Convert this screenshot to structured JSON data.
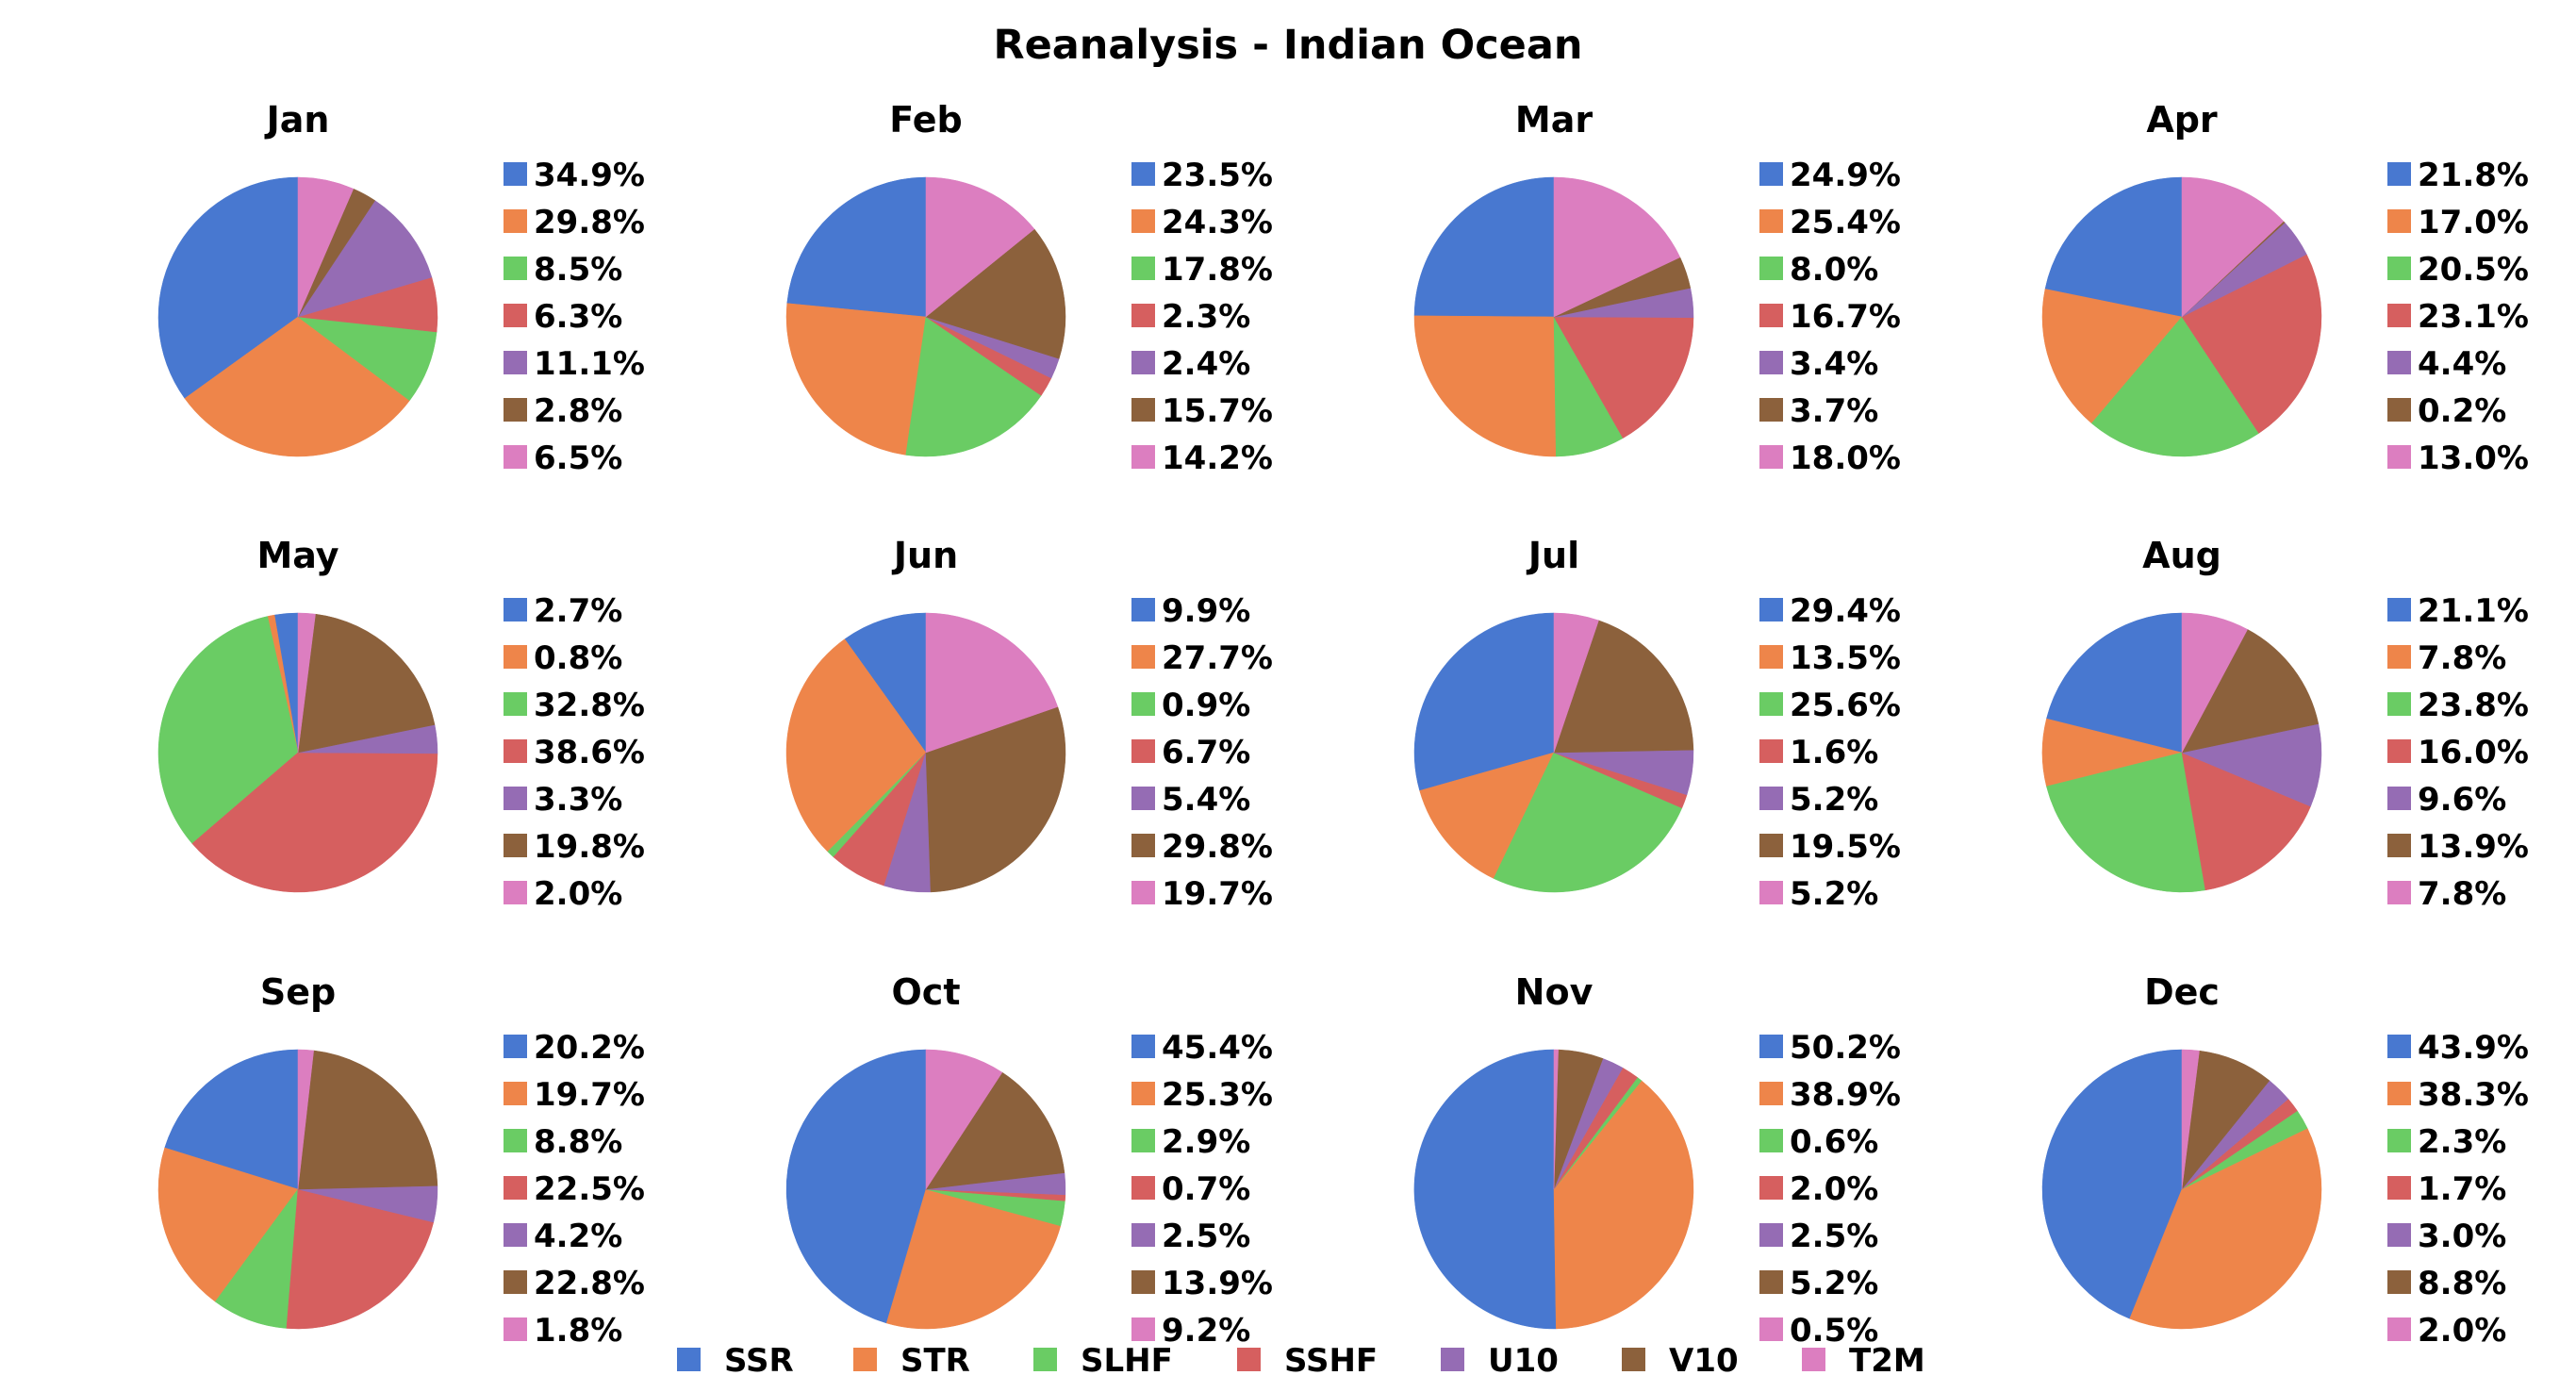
{
  "chart_data": {
    "type": "pie",
    "title": "Reanalysis - Indian Ocean",
    "legend_placement": "bottom-center",
    "series": [
      {
        "name": "SSR",
        "color": "#4878d0"
      },
      {
        "name": "STR",
        "color": "#ee854a"
      },
      {
        "name": "SLHF",
        "color": "#6acc64"
      },
      {
        "name": "SSHF",
        "color": "#d65f5f"
      },
      {
        "name": "U10",
        "color": "#956cb4"
      },
      {
        "name": "V10",
        "color": "#8c613c"
      },
      {
        "name": "T2M",
        "color": "#dc7ec0"
      }
    ],
    "panels": [
      {
        "title": "Jan",
        "values": [
          34.9,
          29.8,
          8.5,
          6.3,
          11.1,
          2.8,
          6.5
        ],
        "labels": [
          "34.9%",
          "29.8%",
          "8.5%",
          "6.3%",
          "11.1%",
          "2.8%",
          "6.5%"
        ]
      },
      {
        "title": "Feb",
        "values": [
          23.5,
          24.3,
          17.8,
          2.3,
          2.4,
          15.7,
          14.2
        ],
        "labels": [
          "23.5%",
          "24.3%",
          "17.8%",
          "2.3%",
          "2.4%",
          "15.7%",
          "14.2%"
        ]
      },
      {
        "title": "Mar",
        "values": [
          24.9,
          25.4,
          8.0,
          16.7,
          3.4,
          3.7,
          18.0
        ],
        "labels": [
          "24.9%",
          "25.4%",
          "8.0%",
          "16.7%",
          "3.4%",
          "3.7%",
          "18.0%"
        ]
      },
      {
        "title": "Apr",
        "values": [
          21.8,
          17.0,
          20.5,
          23.1,
          4.4,
          0.2,
          13.0
        ],
        "labels": [
          "21.8%",
          "17.0%",
          "20.5%",
          "23.1%",
          "4.4%",
          "0.2%",
          "13.0%"
        ]
      },
      {
        "title": "May",
        "values": [
          2.7,
          0.8,
          32.8,
          38.6,
          3.3,
          19.8,
          2.0
        ],
        "labels": [
          "2.7%",
          "0.8%",
          "32.8%",
          "38.6%",
          "3.3%",
          "19.8%",
          "2.0%"
        ]
      },
      {
        "title": "Jun",
        "values": [
          9.9,
          27.7,
          0.9,
          6.7,
          5.4,
          29.8,
          19.7
        ],
        "labels": [
          "9.9%",
          "27.7%",
          "0.9%",
          "6.7%",
          "5.4%",
          "29.8%",
          "19.7%"
        ]
      },
      {
        "title": "Jul",
        "values": [
          29.4,
          13.5,
          25.6,
          1.6,
          5.2,
          19.5,
          5.2
        ],
        "labels": [
          "29.4%",
          "13.5%",
          "25.6%",
          "1.6%",
          "5.2%",
          "19.5%",
          "5.2%"
        ]
      },
      {
        "title": "Aug",
        "values": [
          21.1,
          7.8,
          23.8,
          16.0,
          9.6,
          13.9,
          7.8
        ],
        "labels": [
          "21.1%",
          "7.8%",
          "23.8%",
          "16.0%",
          "9.6%",
          "13.9%",
          "7.8%"
        ]
      },
      {
        "title": "Sep",
        "values": [
          20.2,
          19.7,
          8.8,
          22.5,
          4.2,
          22.8,
          1.8
        ],
        "labels": [
          "20.2%",
          "19.7%",
          "8.8%",
          "22.5%",
          "4.2%",
          "22.8%",
          "1.8%"
        ]
      },
      {
        "title": "Oct",
        "values": [
          45.4,
          25.3,
          2.9,
          0.7,
          2.5,
          13.9,
          9.2
        ],
        "labels": [
          "45.4%",
          "25.3%",
          "2.9%",
          "0.7%",
          "2.5%",
          "13.9%",
          "9.2%"
        ]
      },
      {
        "title": "Nov",
        "values": [
          50.2,
          38.9,
          0.6,
          2.0,
          2.5,
          5.2,
          0.5
        ],
        "labels": [
          "50.2%",
          "38.9%",
          "0.6%",
          "2.0%",
          "2.5%",
          "5.2%",
          "0.5%"
        ]
      },
      {
        "title": "Dec",
        "values": [
          43.9,
          38.3,
          2.3,
          1.7,
          3.0,
          8.8,
          2.0
        ],
        "labels": [
          "43.9%",
          "38.3%",
          "2.3%",
          "1.7%",
          "3.0%",
          "8.8%",
          "2.0%"
        ]
      }
    ]
  }
}
